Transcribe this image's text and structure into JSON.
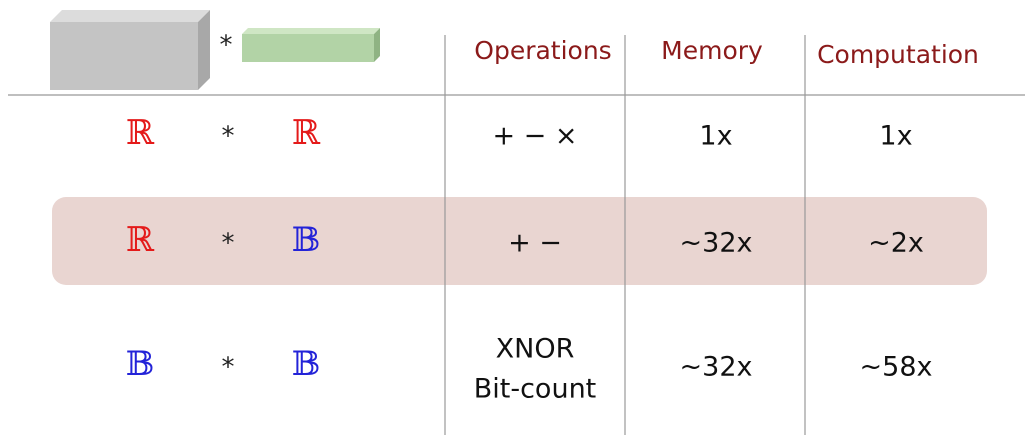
{
  "header": {
    "operator": "*",
    "columns": [
      "Operations",
      "Memory",
      "Computation"
    ]
  },
  "rows": [
    {
      "left": "ℝ",
      "operator": "*",
      "right": "ℝ",
      "operations": [
        "+ − ×"
      ],
      "memory": "1x",
      "computation": "1x"
    },
    {
      "left": "ℝ",
      "operator": "*",
      "right": "𝔹",
      "operations": [
        "+ −"
      ],
      "memory": "~32x",
      "computation": "~2x"
    },
    {
      "left": "𝔹",
      "operator": "*",
      "right": "𝔹",
      "operations": [
        "XNOR",
        "Bit-count"
      ],
      "memory": "~32x",
      "computation": "~58x"
    }
  ]
}
